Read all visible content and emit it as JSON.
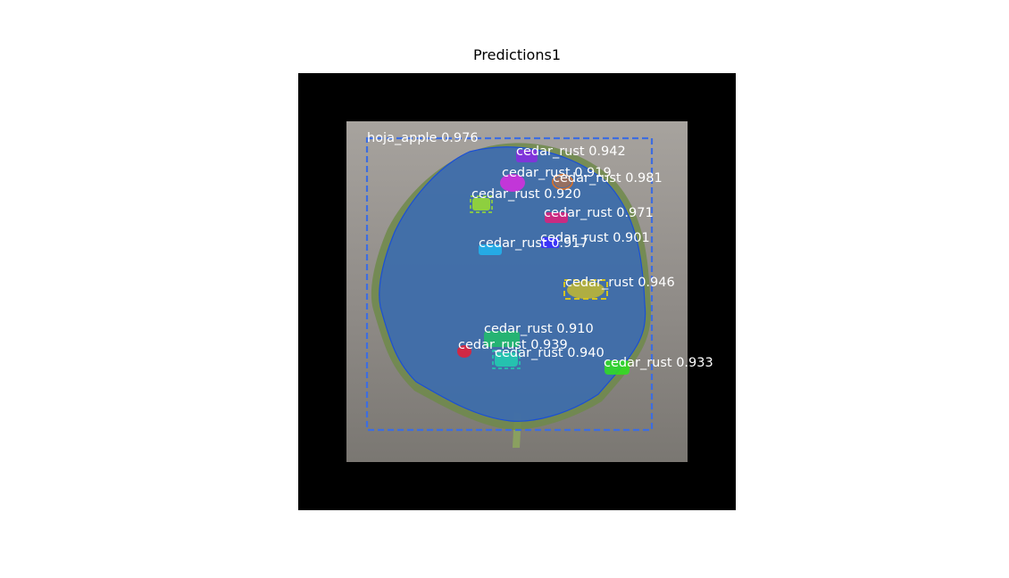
{
  "figure": {
    "title": "Predictions1"
  },
  "colors": {
    "background_border": "#000000",
    "leaf_mask": "#2f64c9",
    "leaf_box": "#3d6de0",
    "label_text": "#ffffff"
  },
  "detections": [
    {
      "label": "hoja_apple 0.976",
      "color": "#3d6de0"
    },
    {
      "label": "cedar_rust 0.942",
      "color": "#8a2be2"
    },
    {
      "label": "cedar_rust 0.919",
      "color": "#d82de0"
    },
    {
      "label": "cedar_rust 0.981",
      "color": "#d07030"
    },
    {
      "label": "cedar_rust 0.920",
      "color": "#9be02d"
    },
    {
      "label": "cedar_rust 0.971",
      "color": "#e0207a"
    },
    {
      "label": "cedar_rust 0.901",
      "color": "#3a2dff"
    },
    {
      "label": "cedar_rust 0.917",
      "color": "#20b5f0"
    },
    {
      "label": "cedar_rust 0.946",
      "color": "#d4c420"
    },
    {
      "label": "cedar_rust 0.910",
      "color": "#20c06a"
    },
    {
      "label": "cedar_rust 0.939",
      "color": "#e0203a"
    },
    {
      "label": "cedar_rust 0.940",
      "color": "#20d0b0"
    },
    {
      "label": "cedar_rust 0.933",
      "color": "#30e020"
    }
  ]
}
